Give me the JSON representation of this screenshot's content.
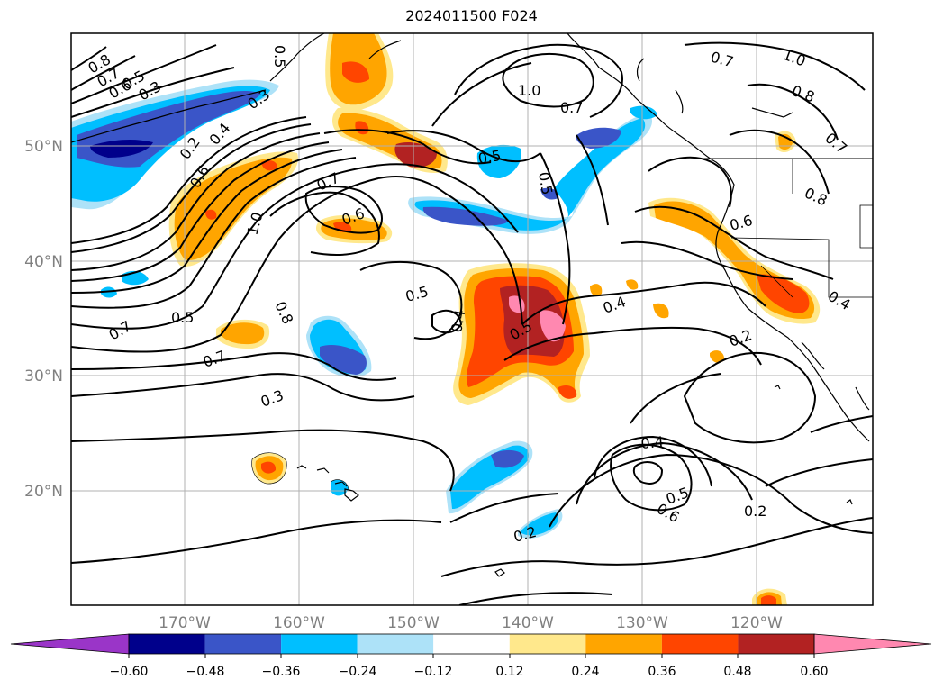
{
  "title": "2024011500 F024",
  "longitude_labels": [
    "170°W",
    "160°W",
    "150°W",
    "140°W",
    "130°W",
    "120°W"
  ],
  "latitude_labels": [
    "50°N",
    "40°N",
    "30°N",
    "20°N"
  ],
  "contour_labels": [
    {
      "text": "0.8"
    },
    {
      "text": "0.7"
    },
    {
      "text": "0.6"
    },
    {
      "text": "0.5"
    },
    {
      "text": "0.3"
    },
    {
      "text": "0.3"
    },
    {
      "text": "0.2"
    },
    {
      "text": "0.4"
    },
    {
      "text": "0.6"
    },
    {
      "text": "1.0"
    },
    {
      "text": "0.7"
    },
    {
      "text": "0.6"
    },
    {
      "text": "0.5"
    },
    {
      "text": "0.5"
    },
    {
      "text": "1.0"
    },
    {
      "text": "0.7"
    },
    {
      "text": "0.5"
    },
    {
      "text": "0.7"
    },
    {
      "text": "1.0"
    },
    {
      "text": "0.8"
    },
    {
      "text": "0.7"
    },
    {
      "text": "0.8"
    },
    {
      "text": "0.6"
    },
    {
      "text": "0.4"
    },
    {
      "text": "0.5"
    },
    {
      "text": "0.4"
    },
    {
      "text": "0.5"
    },
    {
      "text": "0.4"
    },
    {
      "text": "0.2"
    },
    {
      "text": "0.5"
    },
    {
      "text": "0.7"
    },
    {
      "text": "0.8"
    },
    {
      "text": "0.7"
    },
    {
      "text": "0.3"
    },
    {
      "text": "0.4"
    },
    {
      "text": "0.6"
    },
    {
      "text": "0.5"
    },
    {
      "text": "0.2"
    },
    {
      "text": "0.2"
    }
  ],
  "colorbar": {
    "colors": [
      "#9a35c8",
      "#00008b",
      "#3a55c8",
      "#00bfff",
      "#ade2f8",
      "#ffffff",
      "#ffe88c",
      "#ffa500",
      "#ff4500",
      "#b22222",
      "#ff88b0"
    ],
    "tick_labels": [
      "−0.60",
      "−0.48",
      "−0.36",
      "−0.24",
      "−0.12",
      "0.12",
      "0.24",
      "0.36",
      "0.48",
      "0.60"
    ]
  }
}
